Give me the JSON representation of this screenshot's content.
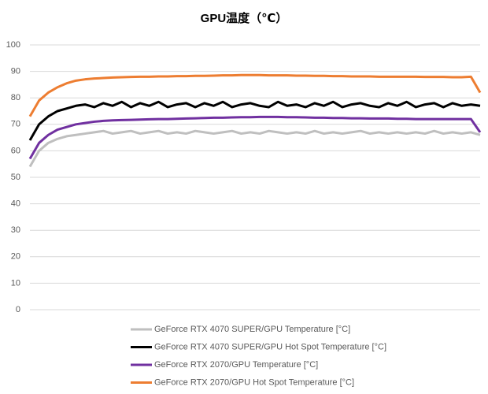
{
  "chart_data": {
    "type": "line",
    "title": "GPU温度（℃）",
    "categories": [
      null,
      null,
      null,
      null,
      null,
      null,
      null,
      null,
      null,
      null,
      null,
      null,
      null,
      null,
      null,
      null,
      null,
      null,
      null,
      null,
      null,
      null,
      null,
      null,
      null,
      null,
      null,
      null,
      null,
      null,
      null,
      null,
      null,
      null,
      null,
      null,
      null,
      null,
      null,
      null,
      null,
      null,
      null,
      null,
      null,
      null,
      null,
      null,
      null,
      null
    ],
    "ylim": [
      0,
      100
    ],
    "yticks": [
      0,
      10,
      20,
      30,
      40,
      50,
      60,
      70,
      80,
      90,
      100
    ],
    "grid": true,
    "series": [
      {
        "name": "GeForce RTX 4070 SUPER/GPU Temperature [°C]",
        "color": "#bfbfbf",
        "values": [
          54,
          60,
          63,
          64.5,
          65.5,
          66,
          66.5,
          67,
          67.5,
          66.5,
          67,
          67.5,
          66.5,
          67,
          67.5,
          66.5,
          67,
          66.5,
          67.5,
          67,
          66.5,
          67,
          67.5,
          66.5,
          67,
          66.5,
          67.5,
          67,
          66.5,
          67,
          66.5,
          67.5,
          66.5,
          67,
          66.5,
          67,
          67.5,
          66.5,
          67,
          66.5,
          67,
          66.5,
          67,
          66.5,
          67.5,
          66.5,
          67,
          66.5,
          67,
          66
        ]
      },
      {
        "name": "GeForce RTX 4070 SUPER/GPU Hot Spot Temperature [°C]",
        "color": "#000000",
        "values": [
          64,
          70,
          73,
          75,
          76,
          77,
          77.5,
          76.5,
          78,
          77,
          78.5,
          76.5,
          78,
          77,
          78.5,
          76.5,
          77.5,
          78,
          76.5,
          78,
          77,
          78.5,
          76.5,
          77.5,
          78,
          77,
          76.5,
          78.5,
          77,
          77.5,
          76.5,
          78,
          77,
          78.5,
          76.5,
          77.5,
          78,
          77,
          76.5,
          78,
          77,
          78.5,
          76.5,
          77.5,
          78,
          76.5,
          78,
          77,
          77.5,
          77
        ]
      },
      {
        "name": "GeForce RTX 2070/GPU Temperature [°C]",
        "color": "#7030a0",
        "values": [
          57,
          63,
          66,
          68,
          69,
          70,
          70.5,
          71,
          71.3,
          71.5,
          71.6,
          71.7,
          71.8,
          71.9,
          72,
          72,
          72.1,
          72.2,
          72.3,
          72.4,
          72.5,
          72.5,
          72.6,
          72.7,
          72.7,
          72.8,
          72.8,
          72.8,
          72.7,
          72.7,
          72.6,
          72.5,
          72.5,
          72.4,
          72.4,
          72.3,
          72.3,
          72.2,
          72.2,
          72.2,
          72.1,
          72.1,
          72,
          72,
          72,
          72,
          72,
          72,
          72,
          67
        ]
      },
      {
        "name": "GeForce RTX 2070/GPU Hot Spot Temperature [°C]",
        "color": "#ed7d31",
        "values": [
          73,
          79,
          82,
          84,
          85.5,
          86.5,
          87,
          87.3,
          87.5,
          87.7,
          87.8,
          87.9,
          88,
          88,
          88.1,
          88.1,
          88.2,
          88.2,
          88.3,
          88.3,
          88.4,
          88.5,
          88.5,
          88.6,
          88.6,
          88.6,
          88.5,
          88.5,
          88.5,
          88.4,
          88.4,
          88.3,
          88.3,
          88.2,
          88.2,
          88.1,
          88.1,
          88.1,
          88,
          88,
          88,
          88,
          88,
          87.9,
          87.9,
          87.9,
          87.8,
          87.8,
          88,
          82
        ]
      }
    ]
  }
}
